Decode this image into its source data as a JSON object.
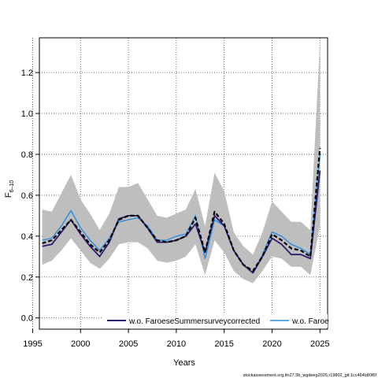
{
  "chart_data": {
    "type": "line",
    "xlabel": "Years",
    "ylabel_main": "F",
    "ylabel_sub": "6–10",
    "xlim": [
      1995.7,
      2025.8
    ],
    "ylim": [
      -0.055,
      1.37
    ],
    "xticks": [
      "1995",
      "2000",
      "2005",
      "2010",
      "2015",
      "2020",
      "2025"
    ],
    "yticks": [
      "0.0",
      "0.2",
      "0.4",
      "0.6",
      "0.8",
      "1.0",
      "1.2"
    ],
    "grid": true,
    "x": [
      1996,
      1997,
      1998,
      1999,
      2000,
      2001,
      2002,
      2003,
      2004,
      2005,
      2006,
      2007,
      2008,
      2009,
      2010,
      2011,
      2012,
      2013,
      2014,
      2015,
      2016,
      2017,
      2018,
      2019,
      2020,
      2021,
      2022,
      2023,
      2024,
      2025
    ],
    "band": {
      "name": "confidence band",
      "color": "#bebebe",
      "lower": [
        0.26,
        0.28,
        0.33,
        0.39,
        0.33,
        0.27,
        0.24,
        0.29,
        0.36,
        0.37,
        0.37,
        0.34,
        0.28,
        0.27,
        0.28,
        0.3,
        0.36,
        0.21,
        0.38,
        0.32,
        0.23,
        0.19,
        0.17,
        0.23,
        0.3,
        0.29,
        0.25,
        0.25,
        0.21,
        0.45
      ],
      "upper": [
        0.53,
        0.52,
        0.61,
        0.7,
        0.58,
        0.51,
        0.43,
        0.51,
        0.64,
        0.64,
        0.66,
        0.58,
        0.5,
        0.49,
        0.51,
        0.53,
        0.63,
        0.45,
        0.71,
        0.62,
        0.42,
        0.35,
        0.31,
        0.42,
        0.57,
        0.52,
        0.47,
        0.47,
        0.43,
        1.35
      ]
    },
    "series": [
      {
        "name": "",
        "color": "#000000",
        "dashed": true,
        "width": 2.2,
        "values": [
          0.365,
          0.38,
          0.43,
          0.48,
          0.42,
          0.36,
          0.32,
          0.38,
          0.48,
          0.5,
          0.5,
          0.44,
          0.38,
          0.37,
          0.38,
          0.4,
          0.49,
          0.32,
          0.52,
          0.46,
          0.33,
          0.26,
          0.23,
          0.3,
          0.41,
          0.38,
          0.34,
          0.33,
          0.3,
          0.83
        ]
      },
      {
        "name": "w.o. FaroeseSummersurveycorrected",
        "color": "#2e1a6e",
        "dashed": false,
        "width": 1.8,
        "values": [
          0.35,
          0.36,
          0.42,
          0.48,
          0.41,
          0.35,
          0.3,
          0.37,
          0.485,
          0.5,
          0.5,
          0.44,
          0.37,
          0.37,
          0.38,
          0.4,
          0.46,
          0.32,
          0.5,
          0.45,
          0.33,
          0.26,
          0.22,
          0.3,
          0.39,
          0.36,
          0.31,
          0.31,
          0.29,
          0.72
        ]
      },
      {
        "name": "w.o. Faroe",
        "color": "#2b8cdf",
        "dashed": false,
        "width": 1.4,
        "values": [
          0.38,
          0.39,
          0.45,
          0.525,
          0.44,
          0.38,
          0.33,
          0.39,
          0.47,
          0.48,
          0.49,
          0.45,
          0.38,
          0.38,
          0.4,
          0.41,
          0.5,
          0.29,
          0.48,
          0.45,
          0.33,
          0.26,
          0.22,
          0.31,
          0.42,
          0.4,
          0.36,
          0.34,
          0.31,
          0.8
        ]
      }
    ]
  },
  "footer": "stockassessment.org,ltn27.5b_wgdeep2026,r19802_git:1cc464b80f6f"
}
